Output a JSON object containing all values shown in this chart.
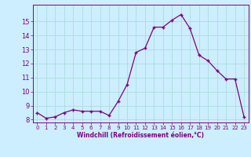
{
  "x": [
    0,
    1,
    2,
    3,
    4,
    5,
    6,
    7,
    8,
    9,
    10,
    11,
    12,
    13,
    14,
    15,
    16,
    17,
    18,
    19,
    20,
    21,
    22,
    23
  ],
  "y": [
    8.5,
    8.1,
    8.2,
    8.5,
    8.7,
    8.6,
    8.6,
    8.6,
    8.3,
    9.3,
    10.5,
    12.8,
    13.1,
    14.6,
    14.6,
    15.1,
    15.5,
    14.5,
    12.6,
    12.2,
    11.5,
    10.9,
    10.9,
    8.2
  ],
  "line_color": "#800080",
  "marker": "+",
  "marker_color": "#800080",
  "bg_color": "#cceeff",
  "grid_color": "#aadddd",
  "xlabel": "Windchill (Refroidissement éolien,°C)",
  "xlabel_color": "#800080",
  "tick_color": "#800080",
  "xlim": [
    -0.5,
    23.5
  ],
  "ylim": [
    7.8,
    16.2
  ],
  "yticks": [
    8,
    9,
    10,
    11,
    12,
    13,
    14,
    15
  ],
  "xticks": [
    0,
    1,
    2,
    3,
    4,
    5,
    6,
    7,
    8,
    9,
    10,
    11,
    12,
    13,
    14,
    15,
    16,
    17,
    18,
    19,
    20,
    21,
    22,
    23
  ]
}
